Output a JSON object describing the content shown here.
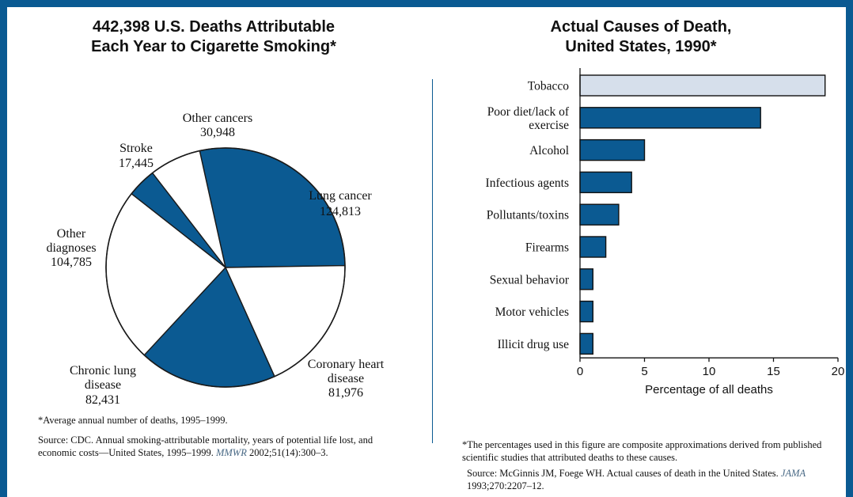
{
  "colors": {
    "border": "#0a5a92",
    "dark_slice": "#0b5a92",
    "light_slice": "#ffffff",
    "bar_fill": "#0b5a92",
    "highlight_bar": "#d6dfeb"
  },
  "left": {
    "title_line1": "442,398 U.S. Deaths Attributable",
    "title_line2": "Each Year to Cigarette Smoking*",
    "footnote": "*Average annual number of deaths, 1995–1999.",
    "source_text": "Source: CDC. Annual smoking-attributable mortality, years of potential life lost, and economic costs—United States, 1995–1999.",
    "source_journal": "MMWR",
    "source_citation": "2002;51(14):300–3."
  },
  "right": {
    "title_line1": "Actual Causes of Death,",
    "title_line2": "United States, 1990*",
    "footnote": "*The percentages used in this figure are composite approximations derived from published scientific studies that attributed deaths to these causes.",
    "source_text": "Source: McGinnis JM, Foege WH. Actual causes of death in the United States.",
    "source_journal": "JAMA",
    "source_citation": "1993;270:2207–12."
  },
  "chart_data": [
    {
      "type": "pie",
      "title": "442,398 U.S. Deaths Attributable Each Year to Cigarette Smoking*",
      "slices": [
        {
          "label": "Lung cancer",
          "value": 124813,
          "value_text": "124,813",
          "dark": true
        },
        {
          "label": "Coronary heart disease",
          "value": 81976,
          "value_text": "81,976",
          "dark": false
        },
        {
          "label": "Chronic lung disease",
          "value": 82431,
          "value_text": "82,431",
          "dark": true
        },
        {
          "label": "Other diagnoses",
          "value": 104785,
          "value_text": "104,785",
          "dark": false
        },
        {
          "label": "Stroke",
          "value": 17445,
          "value_text": "17,445",
          "dark": true
        },
        {
          "label": "Other cancers",
          "value": 30948,
          "value_text": "30,948",
          "dark": false
        }
      ]
    },
    {
      "type": "bar",
      "orientation": "horizontal",
      "title": "Actual Causes of Death, United States, 1990*",
      "categories": [
        "Tobacco",
        "Poor diet/lack of exercise",
        "Alcohol",
        "Infectious agents",
        "Pollutants/toxins",
        "Firearms",
        "Sexual behavior",
        "Motor vehicles",
        "Illicit drug use"
      ],
      "values": [
        19,
        14,
        5,
        4,
        3,
        2,
        1,
        1,
        1
      ],
      "xlabel": "Percentage of all deaths",
      "xlim": [
        0,
        20
      ],
      "xticks": [
        0,
        5,
        10,
        15,
        20
      ],
      "grid": false
    }
  ]
}
